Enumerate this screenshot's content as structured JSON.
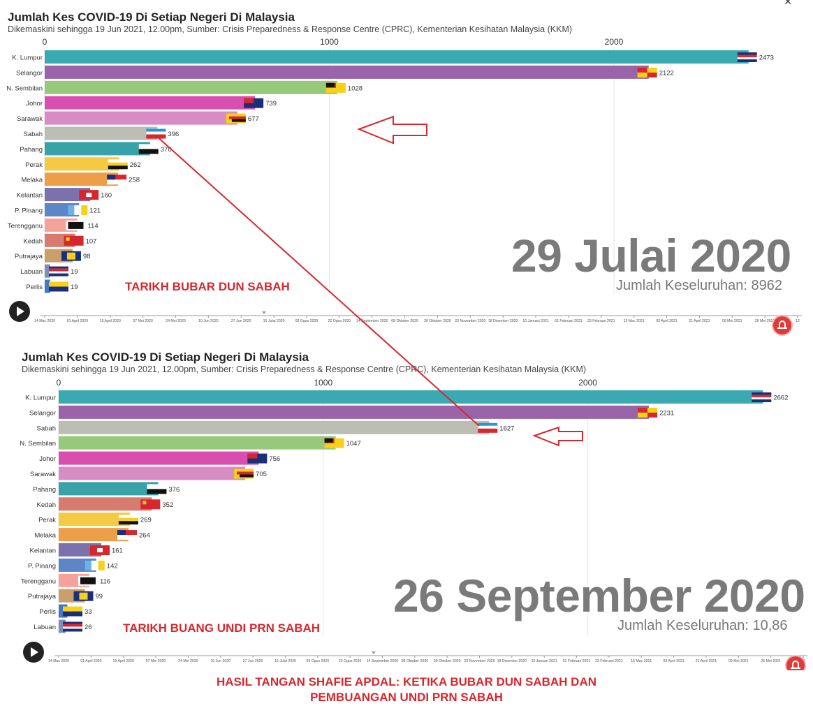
{
  "chart_data": [
    {
      "type": "bar",
      "title": "Jumlah Kes COVID-19 Di Setiap Negeri Di Malaysia",
      "subtitle": "Dikemaskini sehingga 19 Jun 2021, 12.00pm, Sumber: Crisis Preparedness & Response Centre (CPRC), Kementerian Kesihatan Malaysia (KKM)",
      "orientation": "horizontal",
      "xlim": [
        0,
        2650
      ],
      "x_ticks": [
        0,
        1000,
        2000
      ],
      "grid": true,
      "date": "29 Julai 2020",
      "total_label": "Jumlah Keseluruhan: 8962",
      "categories": [
        "K. Lumpur",
        "Selangor",
        "N. Sembilan",
        "Johor",
        "Sarawak",
        "Sabah",
        "Pahang",
        "Perak",
        "Melaka",
        "Kelantan",
        "P. Pinang",
        "Terengganu",
        "Kedah",
        "Putrajaya",
        "Labuan",
        "Perlis"
      ],
      "values": [
        2473,
        2122,
        1028,
        739,
        677,
        396,
        370,
        262,
        258,
        160,
        121,
        114,
        107,
        98,
        19,
        19
      ]
    },
    {
      "type": "bar",
      "title": "Jumlah Kes COVID-19 Di Setiap Negeri Di Malaysia",
      "subtitle": "Dikemaskini sehingga 19 Jun 2021, 12.00pm, Sumber: Crisis Preparedness & Response Centre (CPRC), Kementerian Kesihatan Malaysia (KKM)",
      "orientation": "horizontal",
      "xlim": [
        0,
        2850
      ],
      "x_ticks": [
        0,
        1000,
        2000
      ],
      "grid": true,
      "date": "26 September 2020",
      "total_label": "Jumlah Keseluruhan: 10,86",
      "categories": [
        "K. Lumpur",
        "Selangor",
        "Sabah",
        "N. Sembilan",
        "Johor",
        "Sarawak",
        "Pahang",
        "Kedah",
        "Perak",
        "Melaka",
        "Kelantan",
        "P. Pinang",
        "Terengganu",
        "Putrajaya",
        "Perlis",
        "Labuan"
      ],
      "values": [
        2662,
        2231,
        1627,
        1047,
        756,
        705,
        376,
        352,
        269,
        264,
        161,
        142,
        116,
        99,
        33,
        26
      ]
    }
  ],
  "state_colors": {
    "K. Lumpur": "#3aa9b2",
    "Selangor": "#9a65a8",
    "N. Sembilan": "#97c97a",
    "Johor": "#d94fb0",
    "Sarawak": "#d98bc3",
    "Sabah": "#bcbdb3",
    "Pahang": "#37a2a8",
    "Perak": "#f4c944",
    "Melaka": "#ec9e48",
    "Kelantan": "#7a71ad",
    "P. Pinang": "#5d86c8",
    "Terengganu": "#f5a29c",
    "Kedah": "#d77b6e",
    "Putrajaya": "#c99f6c",
    "Labuan": "#7a90b8",
    "Perlis": "#4679c2"
  },
  "timeline_labels": [
    "14 Mac 2020",
    "01 April 2020",
    "19 April 2020",
    "07 Mei 2020",
    "24 Mei 2020",
    "10 Jun 2020",
    "27 Jun 2020",
    "15 Julai 2020",
    "03 Ogos 2020",
    "22 Ogos 2020",
    "14 September 2020",
    "08 Oktober 2020",
    "30 Oktober 2020",
    "23 November 2020",
    "18 Disember 2020",
    "10 Januari 2021",
    "01 Februari 2021",
    "23 Februari 2021",
    "15 Mac 2021",
    "03 April 2021",
    "21 April 2021",
    "09 Mei 2021",
    "26 Mei 2021",
    "12"
  ],
  "annotations": {
    "top": "TARIKH BUBAR DUN SABAH",
    "bottom": "TARIKH BUANG UNDI PRN SABAH",
    "caption_line1": "HASIL TANGAN SHAFIE APDAL: KETIKA BUBAR DUN SABAH DAN",
    "caption_line2": "PEMBUANGAN UNDI PRN SABAH"
  },
  "colors": {
    "accent_red": "#d8262d",
    "big_date": "#7a7a7a"
  }
}
